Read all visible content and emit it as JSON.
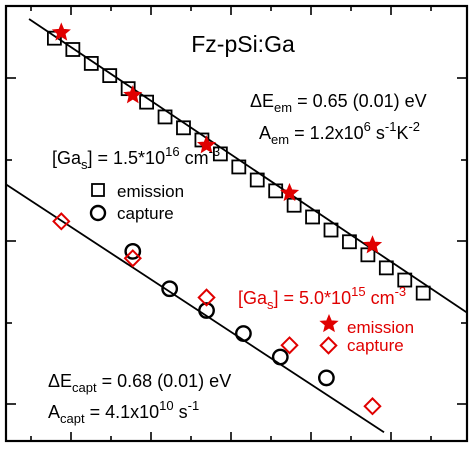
{
  "chart_data": {
    "type": "scatter",
    "title": "Fz-pSi:Ga",
    "xlabel": "",
    "ylabel": "",
    "xlim": [
      0,
      10
    ],
    "ylim": [
      0,
      10
    ],
    "x_tick_labels": [],
    "y_tick_labels": [],
    "series": [
      {
        "name": "emission",
        "group": "[Ga_s] = 1.5*10^16 cm^-3",
        "marker": "square",
        "color": "#000000",
        "x": [
          1.05,
          1.45,
          1.85,
          2.25,
          2.65,
          3.05,
          3.45,
          3.85,
          4.25,
          4.65,
          5.05,
          5.45,
          5.85,
          6.25,
          6.65,
          7.05,
          7.45,
          7.85,
          8.25,
          8.65,
          9.05
        ],
        "y": [
          9.26,
          9.0,
          8.68,
          8.4,
          8.1,
          7.79,
          7.45,
          7.2,
          6.92,
          6.6,
          6.3,
          6.0,
          5.75,
          5.42,
          5.15,
          4.85,
          4.58,
          4.28,
          3.98,
          3.7,
          3.4
        ]
      },
      {
        "name": "capture",
        "group": "[Ga_s] = 1.5*10^16 cm^-3",
        "marker": "circle",
        "color": "#000000",
        "x": [
          2.75,
          3.55,
          4.35,
          5.15,
          5.95,
          6.95
        ],
        "y": [
          4.36,
          3.5,
          3.0,
          2.47,
          1.93,
          1.45
        ]
      },
      {
        "name": "emission",
        "group": "[Ga_s] = 5.0*10^15 cm^-3",
        "marker": "star",
        "color": "#e00000",
        "x": [
          1.2,
          2.75,
          4.35,
          6.15,
          7.95
        ],
        "y": [
          9.39,
          7.95,
          6.8,
          5.7,
          4.5
        ]
      },
      {
        "name": "capture",
        "group": "[Ga_s] = 5.0*10^15 cm^-3",
        "marker": "diamond",
        "color": "#e00000",
        "x": [
          1.2,
          2.75,
          4.35,
          6.15,
          7.95
        ],
        "y": [
          5.05,
          4.2,
          3.3,
          2.2,
          0.8
        ]
      }
    ],
    "fit_lines": [
      {
        "name": "emission fit",
        "x": [
          0.5,
          10.0
        ],
        "y": [
          9.7,
          2.95
        ]
      },
      {
        "name": "capture fit",
        "x": [
          0.0,
          8.2
        ],
        "y": [
          5.9,
          0.2
        ]
      }
    ],
    "annotations": {
      "em_energy": "ΔE",
      "em_energy_sub": "em",
      "em_energy_val": " = 0.65 (0.01) eV",
      "em_pref": "A",
      "em_pref_sub": "em",
      "em_pref_val": " = 1.2x10",
      "em_pref_exp": "6",
      "em_pref_unit": " s",
      "em_pref_unit_exp": "-1",
      "em_pref_unit2": "K",
      "em_pref_unit2_exp": "-2",
      "capt_energy": "ΔE",
      "capt_energy_sub": "capt",
      "capt_energy_val": " = 0.68 (0.01) eV",
      "capt_pref": "A",
      "capt_pref_sub": "capt",
      "capt_pref_val": " = 4.1x10",
      "capt_pref_exp": "10",
      "capt_pref_unit": " s",
      "capt_pref_unit_exp": "-1"
    },
    "legend_black": {
      "heading_a": "[Ga",
      "heading_sub": "s",
      "heading_b": "] = 1.5*10",
      "heading_exp": "16",
      "heading_c": " cm",
      "heading_exp2": "-3",
      "item1": "emission",
      "item2": "capture"
    },
    "legend_red": {
      "heading_a": "[Ga",
      "heading_sub": "s",
      "heading_b": "] = 5.0*10",
      "heading_exp": "15",
      "heading_c": " cm",
      "heading_exp2": "-3",
      "item1": "emission",
      "item2": "capture"
    },
    "grid": false
  }
}
